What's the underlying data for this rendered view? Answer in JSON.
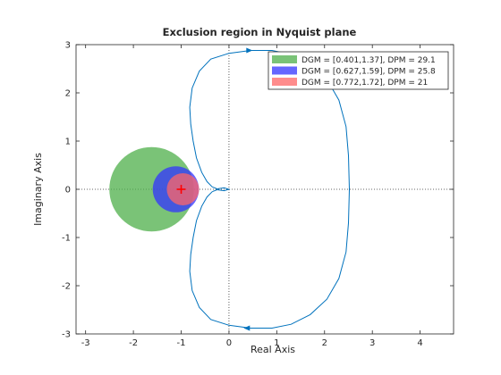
{
  "chart_data": {
    "type": "line",
    "title": "Exclusion region in Nyquist plane",
    "xlabel": "Real Axis",
    "ylabel": "Imaginary Axis",
    "xlim": [
      -3.2,
      4.7
    ],
    "ylim": [
      -3,
      3
    ],
    "xticks": [
      -3,
      -2,
      -1,
      0,
      1,
      2,
      3,
      4
    ],
    "yticks": [
      -3,
      -2,
      -1,
      0,
      1,
      2,
      3
    ],
    "grid": false,
    "legend_position": "top-right",
    "critical_point": {
      "x": -1,
      "y": 0,
      "marker": "+",
      "color": "#ff0000"
    },
    "exclusion_disks": [
      {
        "label": "DGM = [0.401,1.37], DPM = 29.1",
        "center": -1.619,
        "radius": 0.884,
        "color": "#4daf4a"
      },
      {
        "label": "DGM = [0.627,1.59], DPM = 25.8",
        "center": -1.112,
        "radius": 0.483,
        "color": "#3333ff"
      },
      {
        "label": "DGM = [0.772,1.72], DPM = 21",
        "center": -0.963,
        "radius": 0.338,
        "color": "#ff6666"
      }
    ],
    "nyquist_curve": {
      "color": "#0072bd",
      "points_upper": [
        [
          -0.35,
          0.05
        ],
        [
          -0.46,
          0.16
        ],
        [
          -0.57,
          0.35
        ],
        [
          -0.68,
          0.65
        ],
        [
          -0.75,
          1.0
        ],
        [
          -0.8,
          1.35
        ],
        [
          -0.82,
          1.7
        ],
        [
          -0.77,
          2.1
        ],
        [
          -0.62,
          2.45
        ],
        [
          -0.38,
          2.7
        ],
        [
          0.0,
          2.82
        ],
        [
          0.45,
          2.88
        ],
        [
          0.9,
          2.88
        ],
        [
          1.3,
          2.8
        ],
        [
          1.7,
          2.6
        ],
        [
          2.05,
          2.28
        ],
        [
          2.3,
          1.85
        ],
        [
          2.45,
          1.3
        ],
        [
          2.5,
          0.7
        ],
        [
          2.52,
          0.0
        ]
      ],
      "loop_points": [
        [
          -0.35,
          0.05
        ],
        [
          -0.25,
          0.01
        ],
        [
          -0.1,
          0.03
        ],
        [
          0.0,
          0.0
        ],
        [
          -0.1,
          -0.03
        ],
        [
          -0.25,
          -0.01
        ],
        [
          -0.35,
          -0.05
        ]
      ]
    }
  }
}
